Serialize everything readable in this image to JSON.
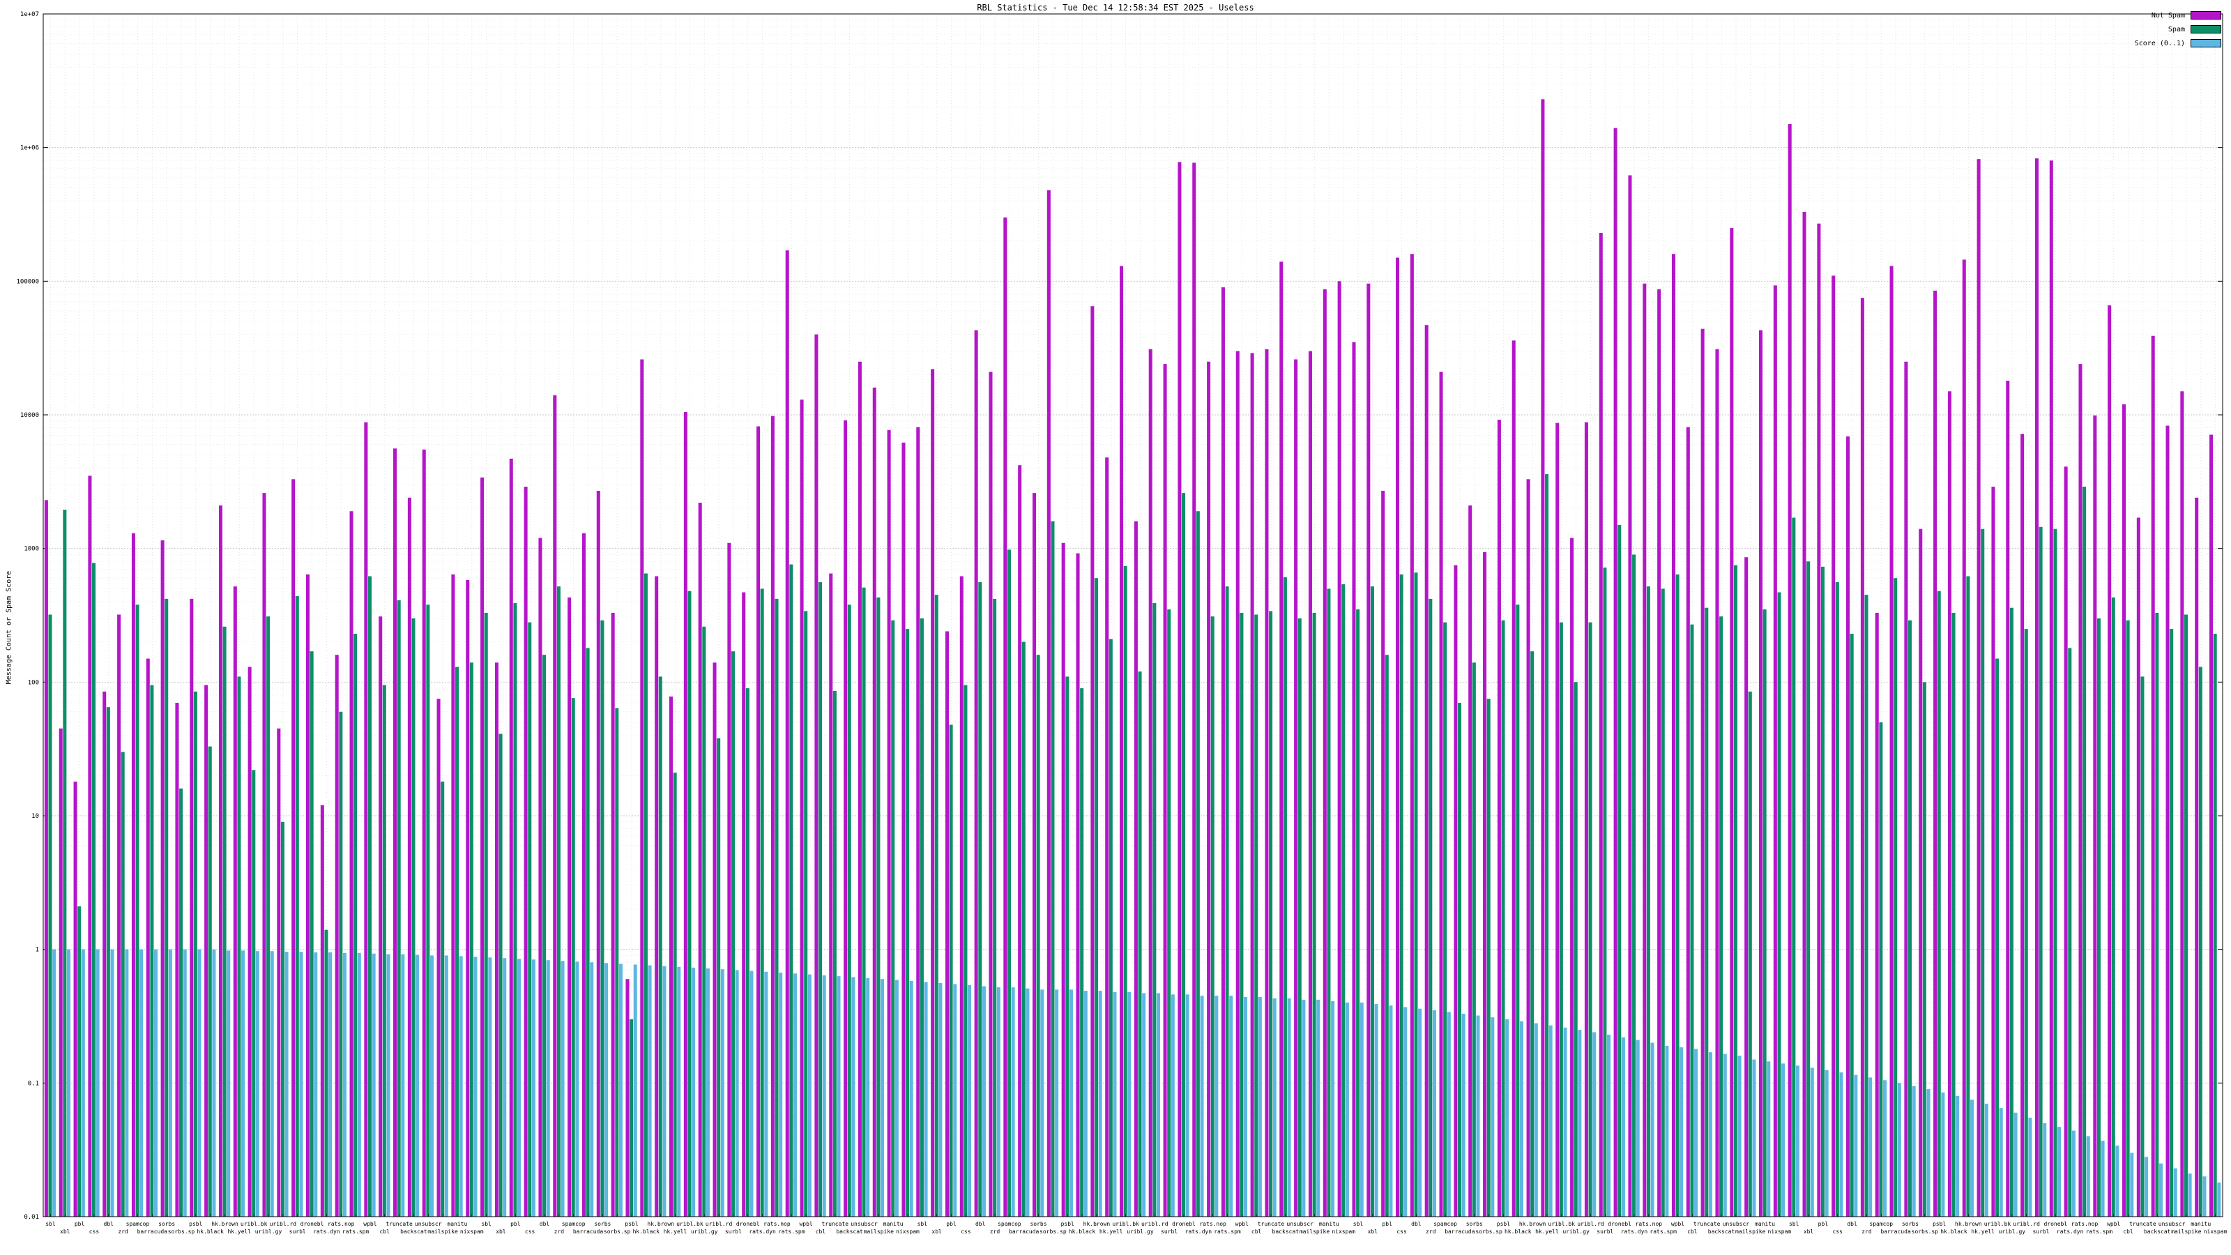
{
  "title": "RBL Statistics - Tue Dec 14 12:58:34 EST 2025 - Useless",
  "y_axis_label": "Message Count or Spam Score",
  "legend": [
    {
      "label": "Not Spam",
      "color": "#b515c9"
    },
    {
      "label": "Spam",
      "color": "#0c8f68"
    },
    {
      "label": "Score (0..1)",
      "color": "#5fb6e2"
    }
  ],
  "chart_data": {
    "type": "bar",
    "scale": "log",
    "title": "RBL Statistics - Tue Dec 14 12:58:34 EST 2025 - Useless",
    "xlabel": "",
    "ylabel": "Message Count or Spam Score",
    "ylim": [
      0.01,
      10000000
    ],
    "grid": true,
    "legend_position": "top-right",
    "y_ticks": [
      "1e+07",
      "1e+06",
      "100000",
      "10000",
      "1000",
      "100",
      "10",
      "1",
      "0.1",
      "0.01"
    ],
    "categories": [
      "sbl",
      "xbl",
      "pbl",
      "css",
      "dbl",
      "zrd",
      "spamcop",
      "barracuda",
      "sorbs",
      "sorbs.sp",
      "psbl",
      "hk.black",
      "hk.brown",
      "hk.yell",
      "uribl.bk",
      "uribl.gy",
      "uribl.rd",
      "surbl",
      "dronebl",
      "rats.dyn",
      "rats.nop",
      "rats.spm",
      "wpbl",
      "cbl",
      "truncate",
      "backscat",
      "unsubscr",
      "mailspike",
      "manitu",
      "nixspam",
      "sbl",
      "xbl",
      "pbl",
      "css",
      "dbl",
      "zrd",
      "spamcop",
      "barracuda",
      "sorbs",
      "sorbs.sp",
      "psbl",
      "hk.black",
      "hk.brown",
      "hk.yell",
      "uribl.bk",
      "uribl.gy",
      "uribl.rd",
      "surbl",
      "dronebl",
      "rats.dyn",
      "rats.nop",
      "rats.spm",
      "wpbl",
      "cbl",
      "truncate",
      "backscat",
      "unsubscr",
      "mailspike",
      "manitu",
      "nixspam",
      "sbl",
      "xbl",
      "pbl",
      "css",
      "dbl",
      "zrd",
      "spamcop",
      "barracuda",
      "sorbs",
      "sorbs.sp",
      "psbl",
      "hk.black",
      "hk.brown",
      "hk.yell",
      "uribl.bk",
      "uribl.gy",
      "uribl.rd",
      "surbl",
      "dronebl",
      "rats.dyn",
      "rats.nop",
      "rats.spm",
      "wpbl",
      "cbl",
      "truncate",
      "backscat",
      "unsubscr",
      "mailspike",
      "manitu",
      "nixspam",
      "sbl",
      "xbl",
      "pbl",
      "css",
      "dbl",
      "zrd",
      "spamcop",
      "barracuda",
      "sorbs",
      "sorbs.sp",
      "psbl",
      "hk.black",
      "hk.brown",
      "hk.yell",
      "uribl.bk",
      "uribl.gy",
      "uribl.rd",
      "surbl",
      "dronebl",
      "rats.dyn",
      "rats.nop",
      "rats.spm",
      "wpbl",
      "cbl",
      "truncate",
      "backscat",
      "unsubscr",
      "mailspike",
      "manitu",
      "nixspam",
      "sbl",
      "xbl",
      "pbl",
      "css",
      "dbl",
      "zrd",
      "spamcop",
      "barracuda",
      "sorbs",
      "sorbs.sp",
      "psbl",
      "hk.black",
      "hk.brown",
      "hk.yell",
      "uribl.bk",
      "uribl.gy",
      "uribl.rd",
      "surbl",
      "dronebl",
      "rats.dyn",
      "rats.nop",
      "rats.spm",
      "wpbl",
      "cbl",
      "truncate",
      "backscat",
      "unsubscr",
      "mailspike",
      "manitu",
      "nixspam"
    ],
    "series": [
      {
        "name": "Not Spam",
        "color": "#b515c9",
        "values": [
          2300,
          45,
          18,
          3500,
          85,
          320,
          1300,
          150,
          1150,
          70,
          420,
          95,
          2100,
          520,
          130,
          2600,
          45,
          3300,
          640,
          12,
          160,
          1900,
          8800,
          310,
          5600,
          2400,
          5500,
          75,
          640,
          580,
          3400,
          140,
          4700,
          2900,
          1200,
          14000,
          430,
          1300,
          2700,
          330,
          0.6,
          26000,
          620,
          78,
          10500,
          2200,
          140,
          1100,
          470,
          8200,
          9800,
          170000,
          13000,
          40000,
          650,
          9100,
          25000,
          16000,
          7700,
          6200,
          8100,
          22000,
          240,
          620,
          43000,
          21000,
          300000,
          4200,
          2600,
          480000,
          1100,
          920,
          65000,
          4800,
          130000,
          1600,
          31000,
          24000,
          780000,
          770000,
          25000,
          90000,
          30000,
          29000,
          31000,
          140000,
          26000,
          30000,
          87000,
          100000,
          35000,
          96000,
          2700,
          150000,
          160000,
          47000,
          21000,
          750,
          2100,
          940,
          9200,
          36000,
          3300,
          2300000,
          8700,
          1200,
          8800,
          230000,
          1400000,
          620000,
          96000,
          87000,
          160000,
          8100,
          44000,
          31000,
          250000,
          860,
          43000,
          93000,
          1500000,
          330000,
          270000,
          110000,
          6900,
          75000,
          330,
          130000,
          25000,
          1400,
          85000,
          15000,
          145000,
          820000,
          2900,
          18000,
          7200,
          830000,
          800000,
          4100,
          24000,
          9900,
          66000,
          12000,
          1700,
          39000,
          8300,
          15000,
          2400,
          7100
        ]
      },
      {
        "name": "Spam",
        "color": "#0c8f68",
        "values": [
          320,
          1950,
          2.1,
          780,
          65,
          30,
          380,
          95,
          420,
          16,
          85,
          33,
          260,
          110,
          22,
          310,
          9,
          440,
          170,
          1.4,
          60,
          230,
          620,
          95,
          410,
          300,
          380,
          18,
          130,
          140,
          330,
          41,
          390,
          280,
          160,
          520,
          76,
          180,
          290,
          64,
          0.3,
          650,
          110,
          21,
          480,
          260,
          38,
          170,
          90,
          500,
          420,
          760,
          340,
          560,
          86,
          380,
          510,
          430,
          290,
          250,
          300,
          450,
          48,
          95,
          560,
          420,
          980,
          200,
          160,
          1600,
          110,
          90,
          600,
          210,
          740,
          120,
          390,
          350,
          2600,
          1900,
          310,
          520,
          330,
          320,
          340,
          610,
          300,
          330,
          500,
          540,
          350,
          520,
          160,
          640,
          660,
          420,
          280,
          70,
          140,
          75,
          290,
          380,
          170,
          3600,
          280,
          100,
          280,
          720,
          1500,
          900,
          520,
          500,
          640,
          270,
          360,
          310,
          750,
          85,
          350,
          470,
          1700,
          800,
          730,
          560,
          230,
          450,
          50,
          600,
          290,
          100,
          480,
          330,
          620,
          1400,
          150,
          360,
          250,
          1450,
          1400,
          180,
          2900,
          300,
          430,
          290,
          110,
          330,
          250,
          320,
          130,
          230
        ]
      },
      {
        "name": "Score (0..1)",
        "color": "#5fb6e2",
        "values": [
          1,
          1,
          1,
          1,
          1,
          1,
          1,
          1,
          1,
          1,
          1,
          1,
          0.98,
          0.98,
          0.97,
          0.97,
          0.96,
          0.96,
          0.95,
          0.95,
          0.94,
          0.94,
          0.93,
          0.92,
          0.92,
          0.91,
          0.9,
          0.9,
          0.89,
          0.88,
          0.87,
          0.86,
          0.85,
          0.84,
          0.83,
          0.82,
          0.81,
          0.8,
          0.79,
          0.78,
          0.77,
          0.76,
          0.75,
          0.74,
          0.73,
          0.72,
          0.71,
          0.7,
          0.69,
          0.68,
          0.67,
          0.66,
          0.65,
          0.64,
          0.63,
          0.62,
          0.61,
          0.6,
          0.59,
          0.58,
          0.57,
          0.56,
          0.55,
          0.54,
          0.53,
          0.52,
          0.52,
          0.51,
          0.5,
          0.5,
          0.5,
          0.49,
          0.49,
          0.48,
          0.48,
          0.47,
          0.47,
          0.46,
          0.46,
          0.45,
          0.45,
          0.45,
          0.44,
          0.44,
          0.43,
          0.43,
          0.42,
          0.42,
          0.41,
          0.4,
          0.4,
          0.39,
          0.38,
          0.37,
          0.36,
          0.35,
          0.34,
          0.33,
          0.32,
          0.31,
          0.3,
          0.29,
          0.28,
          0.27,
          0.26,
          0.25,
          0.24,
          0.23,
          0.22,
          0.21,
          0.2,
          0.19,
          0.185,
          0.18,
          0.17,
          0.165,
          0.16,
          0.15,
          0.145,
          0.14,
          0.135,
          0.13,
          0.125,
          0.12,
          0.115,
          0.11,
          0.105,
          0.1,
          0.095,
          0.09,
          0.085,
          0.08,
          0.075,
          0.07,
          0.065,
          0.06,
          0.055,
          0.05,
          0.047,
          0.044,
          0.04,
          0.037,
          0.034,
          0.03,
          0.028,
          0.025,
          0.023,
          0.021,
          0.02,
          0.018
        ]
      }
    ]
  }
}
